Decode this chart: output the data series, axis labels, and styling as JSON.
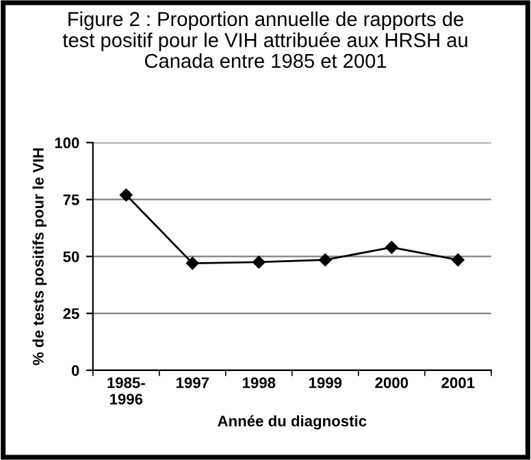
{
  "chart_data": {
    "type": "line",
    "title": "Figure 2 : Proportion annuelle de rapports de\ntest positif pour le VIH attribuée aux HRSH au\nCanada entre 1985 et 2001",
    "xlabel": "Année du diagnostic",
    "ylabel": "% de tests positifs pour le VIH",
    "categories": [
      "1985-\n1996",
      "1997",
      "1998",
      "1999",
      "2000",
      "2001"
    ],
    "values": [
      77,
      47,
      47.5,
      48.5,
      54,
      48.5
    ],
    "color": "#000000",
    "marker": "diamond",
    "line_style": "solid",
    "ylim": [
      0,
      100
    ],
    "yticks": [
      0,
      25,
      50,
      75,
      100
    ],
    "grid": "y",
    "legend": false
  }
}
